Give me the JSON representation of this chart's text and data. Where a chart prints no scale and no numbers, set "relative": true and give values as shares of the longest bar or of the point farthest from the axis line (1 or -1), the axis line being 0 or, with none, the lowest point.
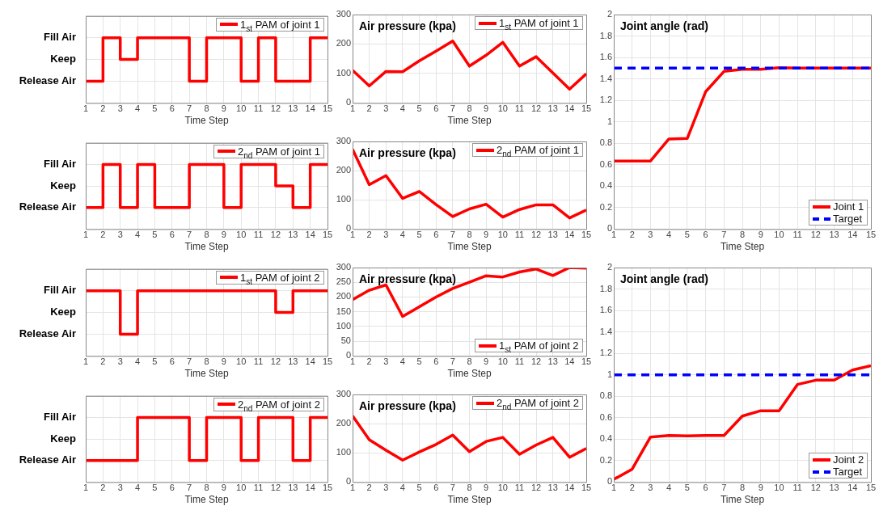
{
  "chart_data": [
    {
      "type": "step",
      "xlabel": "Time Step",
      "x": [
        1,
        2,
        3,
        4,
        5,
        6,
        7,
        8,
        9,
        10,
        11,
        12,
        13,
        14,
        15
      ],
      "xlim": [
        1,
        15
      ],
      "xticks": [
        1,
        2,
        3,
        4,
        5,
        6,
        7,
        8,
        9,
        10,
        11,
        12,
        13,
        14,
        15
      ],
      "relative": true,
      "y_categories": [
        "Fill Air",
        "Keep",
        "Release Air"
      ],
      "grid": true,
      "legend": "top right",
      "series": [
        {
          "name": "1$_{st}$ PAM of joint 1",
          "color": "#ff0000",
          "values": [
            0,
            1,
            0.5,
            1,
            1,
            1,
            0,
            1,
            1,
            0,
            1,
            0,
            0,
            1,
            1
          ]
        }
      ]
    },
    {
      "type": "line",
      "title": "Air pressure (kpa)",
      "xlabel": "Time Step",
      "x": [
        1,
        2,
        3,
        4,
        5,
        6,
        7,
        8,
        9,
        10,
        11,
        12,
        13,
        14,
        15
      ],
      "xlim": [
        1,
        15
      ],
      "xticks": [
        1,
        2,
        3,
        4,
        5,
        6,
        7,
        8,
        9,
        10,
        11,
        12,
        13,
        14,
        15
      ],
      "ylim": [
        0,
        300
      ],
      "yticks": [
        0,
        100,
        200,
        300
      ],
      "grid": true,
      "legend": "top right",
      "series": [
        {
          "name": "1$_{st}$ PAM of joint 1",
          "color": "#ff0000",
          "values": [
            111,
            58,
            107,
            106,
            143,
            176,
            210,
            125,
            162,
            206,
            125,
            157,
            102,
            47,
            99
          ]
        }
      ]
    },
    {
      "type": "line",
      "title": "Joint angle (rad)",
      "xlabel": "Time Step",
      "x": [
        1,
        2,
        3,
        4,
        5,
        6,
        7,
        8,
        9,
        10,
        11,
        12,
        13,
        14,
        15
      ],
      "xlim": [
        1,
        15
      ],
      "xticks": [
        1,
        2,
        3,
        4,
        5,
        6,
        7,
        8,
        9,
        10,
        11,
        12,
        13,
        14,
        15
      ],
      "ylim": [
        0,
        2
      ],
      "yticks": [
        0,
        0.2,
        0.4,
        0.6,
        0.8,
        1,
        1.2,
        1.4,
        1.6,
        1.8,
        2
      ],
      "grid": true,
      "legend": "bottom right",
      "series": [
        {
          "name": "Joint 1",
          "color": "#ff0000",
          "values": [
            0.635,
            0.635,
            0.635,
            0.84,
            0.845,
            1.28,
            1.47,
            1.49,
            1.49,
            1.505,
            1.5,
            1.5,
            1.5,
            1.5,
            1.5
          ]
        },
        {
          "name": "Target",
          "color": "#0000ff",
          "line_style": "dashed",
          "values": [
            1.5,
            1.5,
            1.5,
            1.5,
            1.5,
            1.5,
            1.5,
            1.5,
            1.5,
            1.5,
            1.5,
            1.5,
            1.5,
            1.5,
            1.5
          ]
        }
      ]
    },
    {
      "type": "step",
      "xlabel": "Time Step",
      "x": [
        1,
        2,
        3,
        4,
        5,
        6,
        7,
        8,
        9,
        10,
        11,
        12,
        13,
        14,
        15
      ],
      "xlim": [
        1,
        15
      ],
      "xticks": [
        1,
        2,
        3,
        4,
        5,
        6,
        7,
        8,
        9,
        10,
        11,
        12,
        13,
        14,
        15
      ],
      "relative": true,
      "y_categories": [
        "Fill Air",
        "Keep",
        "Release Air"
      ],
      "grid": true,
      "legend": "top right",
      "series": [
        {
          "name": "2$_{nd}$ PAM of joint 1",
          "color": "#ff0000",
          "values": [
            0,
            1,
            0,
            1,
            0,
            0,
            1,
            1,
            0,
            1,
            1,
            0.5,
            0,
            1,
            1
          ]
        }
      ]
    },
    {
      "type": "line",
      "title": "Air pressure (kpa)",
      "xlabel": "Time Step",
      "x": [
        1,
        2,
        3,
        4,
        5,
        6,
        7,
        8,
        9,
        10,
        11,
        12,
        13,
        14,
        15
      ],
      "xlim": [
        1,
        15
      ],
      "xticks": [
        1,
        2,
        3,
        4,
        5,
        6,
        7,
        8,
        9,
        10,
        11,
        12,
        13,
        14,
        15
      ],
      "ylim": [
        0,
        300
      ],
      "yticks": [
        0,
        100,
        200,
        300
      ],
      "grid": true,
      "legend": "top right",
      "series": [
        {
          "name": "2$_{nd}$ PAM of joint 1",
          "color": "#ff0000",
          "values": [
            273,
            152,
            183,
            105,
            129,
            84,
            43,
            69,
            85,
            41,
            67,
            83,
            83,
            38,
            65
          ]
        }
      ]
    },
    {
      "type": "step",
      "xlabel": "Time Step",
      "x": [
        1,
        2,
        3,
        4,
        5,
        6,
        7,
        8,
        9,
        10,
        11,
        12,
        13,
        14,
        15
      ],
      "xlim": [
        1,
        15
      ],
      "xticks": [
        1,
        2,
        3,
        4,
        5,
        6,
        7,
        8,
        9,
        10,
        11,
        12,
        13,
        14,
        15
      ],
      "relative": true,
      "y_categories": [
        "Fill Air",
        "Keep",
        "Release Air"
      ],
      "grid": true,
      "legend": "top right",
      "series": [
        {
          "name": "1$_{st}$ PAM of joint 2",
          "color": "#ff0000",
          "values": [
            1,
            1,
            0,
            1,
            1,
            1,
            1,
            1,
            1,
            1,
            1,
            0.5,
            1,
            1,
            1
          ]
        }
      ]
    },
    {
      "type": "line",
      "title": "Air pressure (kpa)",
      "xlabel": "Time Step",
      "x": [
        1,
        2,
        3,
        4,
        5,
        6,
        7,
        8,
        9,
        10,
        11,
        12,
        13,
        14,
        15
      ],
      "xlim": [
        1,
        15
      ],
      "xticks": [
        1,
        2,
        3,
        4,
        5,
        6,
        7,
        8,
        9,
        10,
        11,
        12,
        13,
        14,
        15
      ],
      "ylim": [
        0,
        300
      ],
      "yticks": [
        0,
        50,
        100,
        150,
        200,
        250,
        300
      ],
      "grid": true,
      "legend": "bottom right",
      "series": [
        {
          "name": "1$_{st}$ PAM of joint 2",
          "color": "#ff0000",
          "values": [
            191,
            223,
            241,
            134,
            167,
            200,
            229,
            250,
            272,
            268,
            285,
            295,
            273,
            300,
            298
          ]
        }
      ]
    },
    {
      "type": "line",
      "title": "Joint angle (rad)",
      "xlabel": "Time Step",
      "x": [
        1,
        2,
        3,
        4,
        5,
        6,
        7,
        8,
        9,
        10,
        11,
        12,
        13,
        14,
        15
      ],
      "xlim": [
        1,
        15
      ],
      "xticks": [
        1,
        2,
        3,
        4,
        5,
        6,
        7,
        8,
        9,
        10,
        11,
        12,
        13,
        14,
        15
      ],
      "ylim": [
        0,
        2
      ],
      "yticks": [
        0,
        0.2,
        0.4,
        0.6,
        0.8,
        1,
        1.2,
        1.4,
        1.6,
        1.8,
        2
      ],
      "grid": true,
      "legend": "bottom right",
      "series": [
        {
          "name": "Joint 2",
          "color": "#ff0000",
          "values": [
            0.025,
            0.12,
            0.42,
            0.435,
            0.43,
            0.435,
            0.435,
            0.615,
            0.665,
            0.665,
            0.91,
            0.95,
            0.95,
            1.045,
            1.085
          ]
        },
        {
          "name": "Target",
          "color": "#0000ff",
          "line_style": "dashed",
          "values": [
            1,
            1,
            1,
            1,
            1,
            1,
            1,
            1,
            1,
            1,
            1,
            1,
            1,
            1,
            1
          ]
        }
      ]
    },
    {
      "type": "step",
      "xlabel": "Time Step",
      "x": [
        1,
        2,
        3,
        4,
        5,
        6,
        7,
        8,
        9,
        10,
        11,
        12,
        13,
        14,
        15
      ],
      "xlim": [
        1,
        15
      ],
      "xticks": [
        1,
        2,
        3,
        4,
        5,
        6,
        7,
        8,
        9,
        10,
        11,
        12,
        13,
        14,
        15
      ],
      "relative": true,
      "y_categories": [
        "Fill Air",
        "Keep",
        "Release Air"
      ],
      "grid": true,
      "legend": "top right",
      "series": [
        {
          "name": "2$_{nd}$ PAM of joint 2",
          "color": "#ff0000",
          "values": [
            0,
            0,
            0,
            1,
            1,
            1,
            0,
            1,
            1,
            0,
            1,
            1,
            0,
            1,
            1
          ]
        }
      ]
    },
    {
      "type": "line",
      "title": "Air pressure (kpa)",
      "xlabel": "Time Step",
      "x": [
        1,
        2,
        3,
        4,
        5,
        6,
        7,
        8,
        9,
        10,
        11,
        12,
        13,
        14,
        15
      ],
      "xlim": [
        1,
        15
      ],
      "xticks": [
        1,
        2,
        3,
        4,
        5,
        6,
        7,
        8,
        9,
        10,
        11,
        12,
        13,
        14,
        15
      ],
      "ylim": [
        0,
        300
      ],
      "yticks": [
        0,
        100,
        200,
        300
      ],
      "grid": true,
      "legend": "top right",
      "series": [
        {
          "name": "2$_{nd}$ PAM of joint 2",
          "color": "#ff0000",
          "values": [
            227,
            145,
            109,
            75,
            103,
            129,
            161,
            104,
            139,
            153,
            95,
            127,
            153,
            85,
            115
          ]
        }
      ]
    }
  ]
}
